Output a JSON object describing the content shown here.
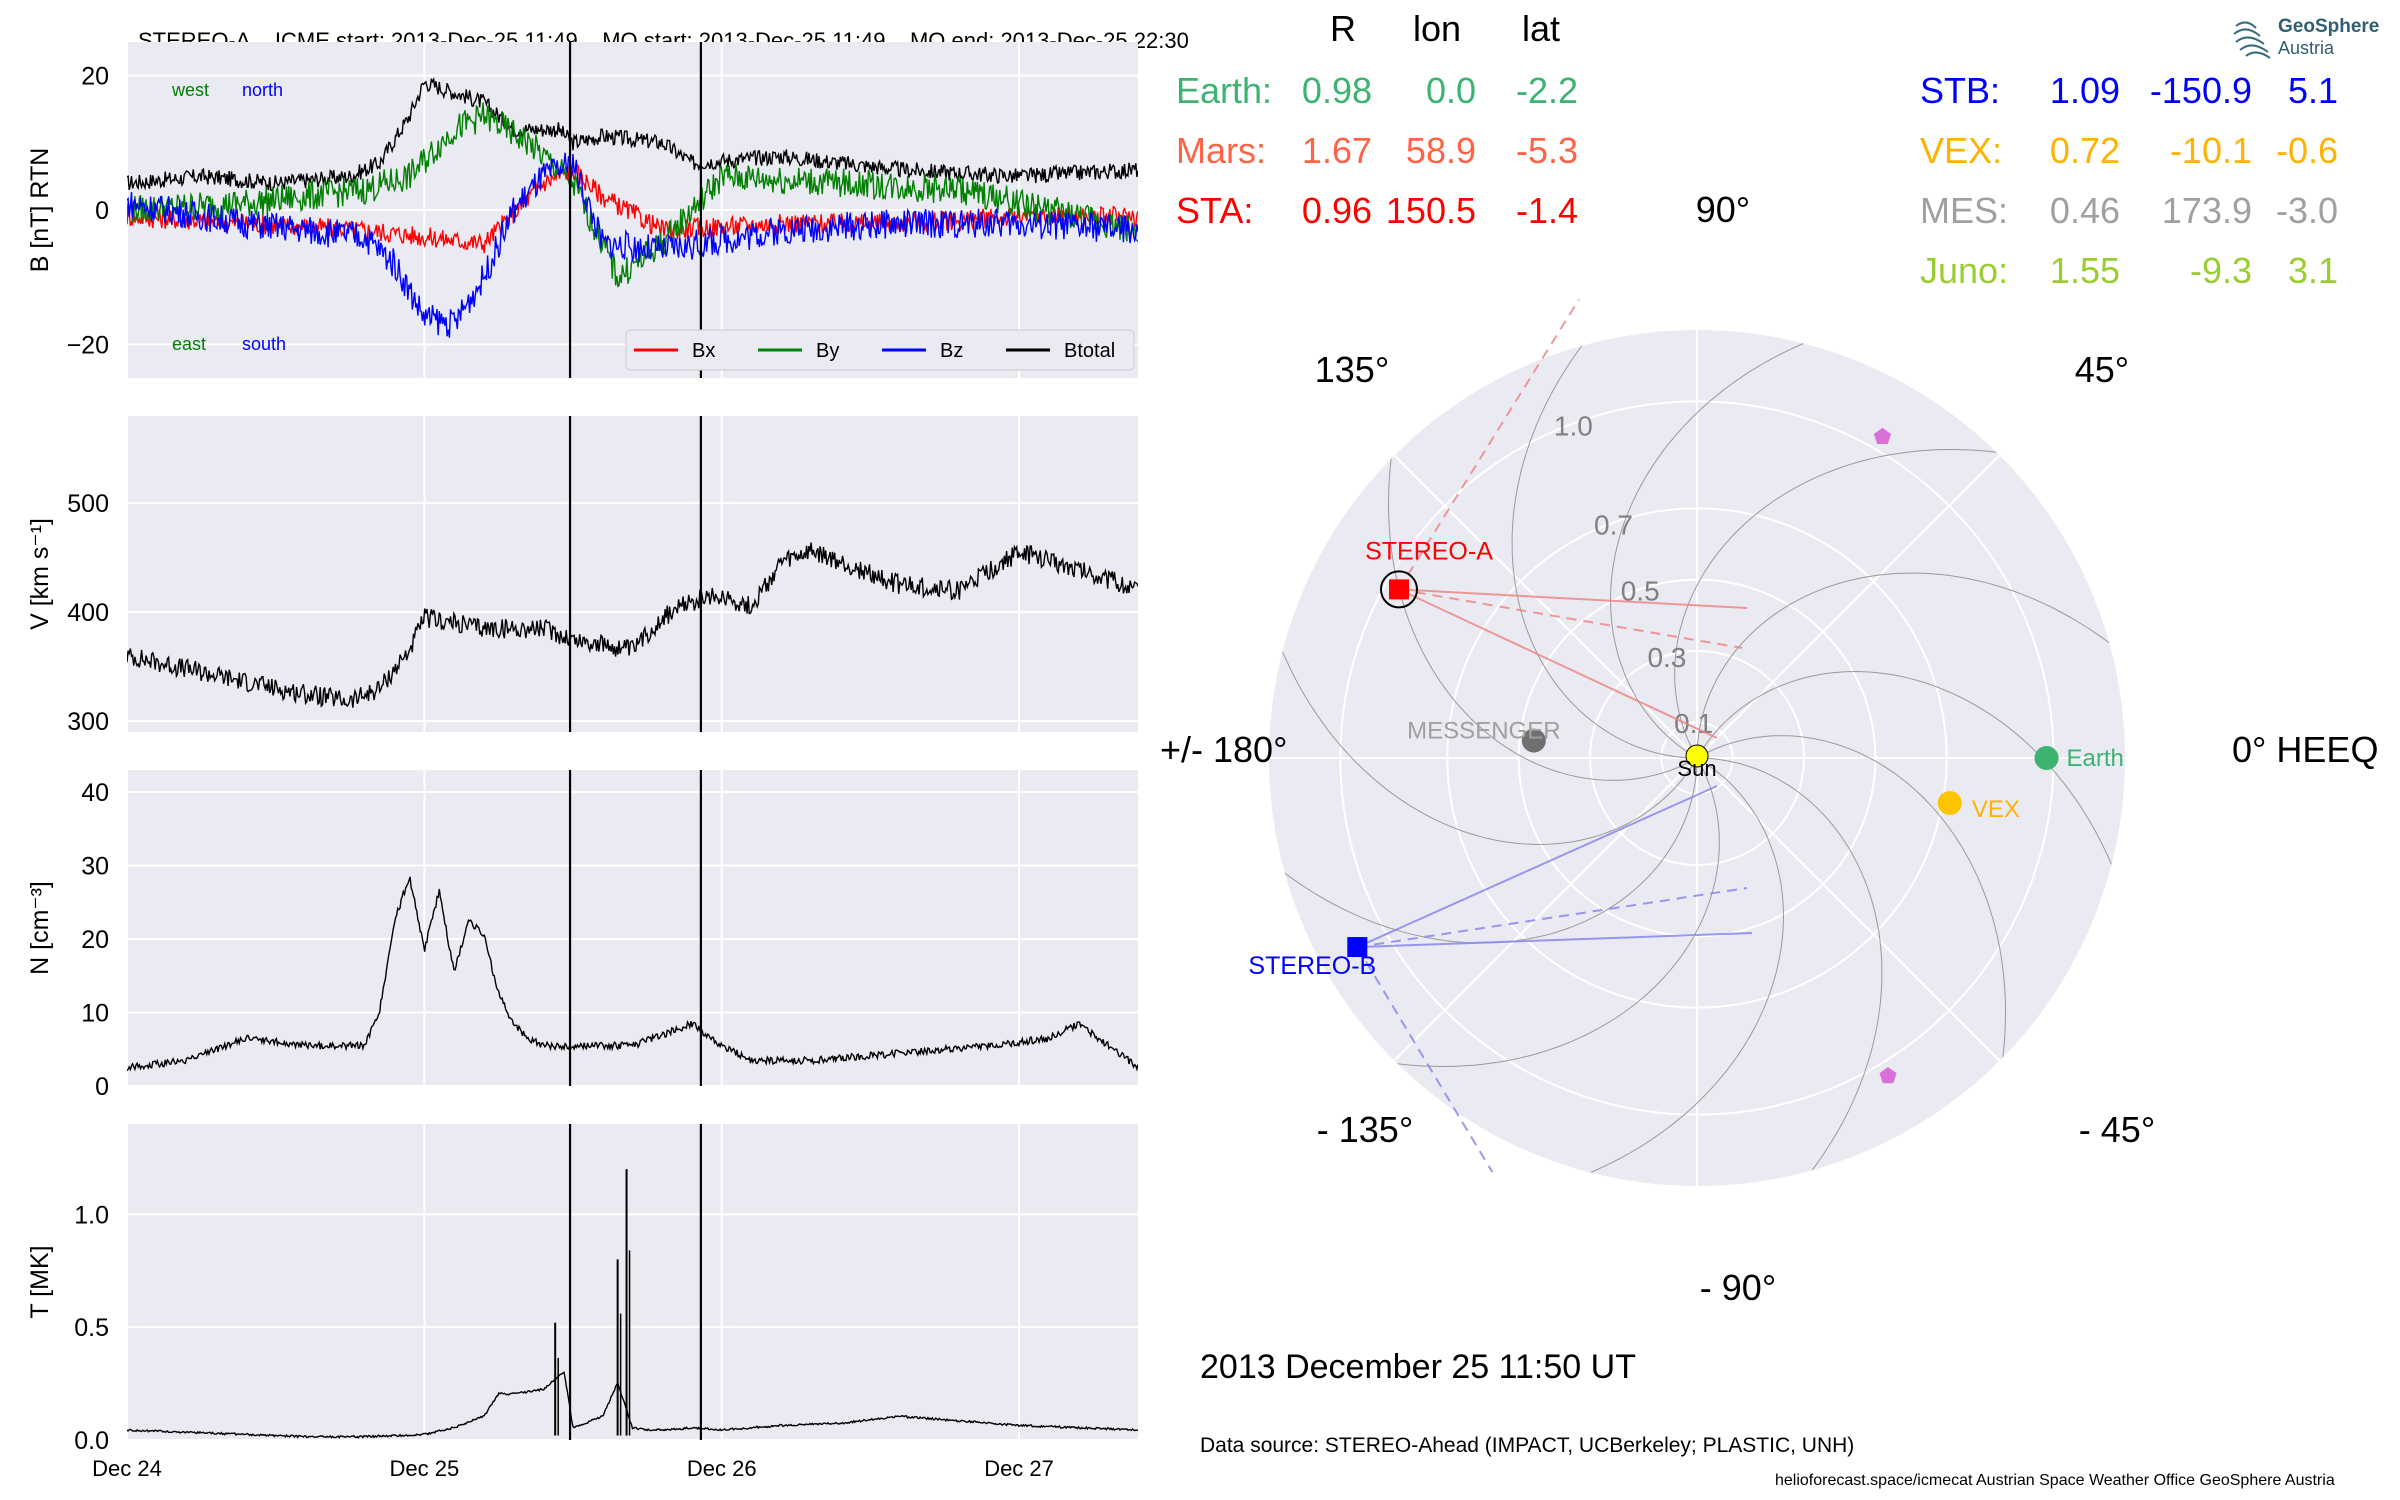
{
  "header": {
    "spacecraft": "STEREO-A",
    "icme_start": "ICME start: 2013-Dec-25 11:49",
    "mo_start": "MO start: 2013-Dec-25 11:49",
    "mo_end": "MO end: 2013-Dec-25 22:30"
  },
  "colors": {
    "Bx": "#ff0000",
    "By": "#008000",
    "Bz": "#0000ff",
    "Btotal": "#000000",
    "earth": "#3cb371",
    "mars": "#ff6347",
    "sta": "#ff0000",
    "stb": "#0000ff",
    "vex": "#ffb300",
    "mes": "#a0a0a0",
    "juno": "#9acd32"
  },
  "chart_data": [
    {
      "type": "line",
      "ylabel": "B [nT] RTN",
      "ylim": [
        -25,
        25
      ],
      "yticks": [
        "20",
        "0",
        "−20"
      ],
      "annotations": {
        "west": "west",
        "north": "north",
        "east": "east",
        "south": "south"
      },
      "legend": [
        "Bx",
        "By",
        "Bz",
        "Btotal"
      ],
      "legend_position": "lower-right",
      "x_days_since": "Dec 24",
      "series": [
        {
          "name": "Btotal",
          "x": [
            0,
            0.25,
            0.5,
            0.75,
            0.85,
            0.95,
            1.0,
            1.2,
            1.3,
            1.45,
            1.5,
            1.6,
            1.8,
            1.9,
            2.2,
            2.6,
            3.0,
            3.4
          ],
          "values": [
            4,
            5,
            4,
            5,
            7,
            14,
            19,
            16,
            12,
            12,
            10,
            11,
            10,
            7,
            8,
            6,
            5,
            6
          ]
        },
        {
          "name": "Bx",
          "x": [
            0,
            0.4,
            0.8,
            1.0,
            1.2,
            1.4,
            1.5,
            1.6,
            1.8,
            2.2,
            2.6,
            3.0,
            3.4
          ],
          "values": [
            -1,
            -2,
            -3,
            -4,
            -5,
            4,
            6,
            2,
            -3,
            -2,
            -2,
            -1,
            -1
          ]
        },
        {
          "name": "By",
          "x": [
            0,
            0.4,
            0.8,
            0.95,
            1.1,
            1.2,
            1.35,
            1.5,
            1.6,
            1.65,
            1.8,
            2.0,
            2.4,
            2.8,
            3.4
          ],
          "values": [
            0,
            1,
            3,
            5,
            12,
            14,
            10,
            4,
            -5,
            -10,
            -5,
            5,
            4,
            3,
            -3
          ]
        },
        {
          "name": "Bz",
          "x": [
            0,
            0.4,
            0.8,
            0.9,
            1.0,
            1.1,
            1.2,
            1.3,
            1.4,
            1.5,
            1.6,
            1.8,
            2.2,
            2.6,
            3.0,
            3.4
          ],
          "values": [
            1,
            -2,
            -4,
            -8,
            -16,
            -17,
            -10,
            0,
            5,
            7,
            -5,
            -6,
            -3,
            -2,
            -2,
            -3
          ]
        }
      ]
    },
    {
      "type": "line",
      "ylabel": "V [km s⁻¹]",
      "ylim": [
        290,
        580
      ],
      "yticks": [
        "500",
        "400",
        "300"
      ],
      "series": [
        {
          "name": "V",
          "x": [
            0,
            0.25,
            0.5,
            0.75,
            0.85,
            0.95,
            1.0,
            1.2,
            1.4,
            1.5,
            1.7,
            1.8,
            1.9,
            2.0,
            2.1,
            2.2,
            2.3,
            2.4,
            2.6,
            2.8,
            3.0,
            3.2,
            3.4
          ],
          "values": [
            360,
            345,
            330,
            318,
            330,
            365,
            395,
            385,
            385,
            375,
            365,
            395,
            410,
            415,
            405,
            445,
            455,
            445,
            425,
            420,
            455,
            440,
            420
          ]
        }
      ]
    },
    {
      "type": "line",
      "ylabel": "N [cm⁻³]",
      "ylim": [
        0,
        43
      ],
      "yticks": [
        "40",
        "30",
        "20",
        "10",
        "0"
      ],
      "series": [
        {
          "name": "N",
          "x": [
            0,
            0.2,
            0.4,
            0.6,
            0.8,
            0.85,
            0.9,
            0.95,
            1.0,
            1.05,
            1.1,
            1.15,
            1.2,
            1.25,
            1.3,
            1.35,
            1.4,
            1.5,
            1.7,
            1.9,
            2.0,
            2.1,
            2.3,
            2.6,
            2.9,
            3.1,
            3.2,
            3.4
          ],
          "values": [
            2,
            3,
            6,
            5,
            5,
            10,
            22,
            28,
            18,
            26,
            15,
            22,
            20,
            12,
            8,
            6,
            5,
            5,
            5,
            8,
            5,
            3,
            3,
            4,
            5,
            6,
            8,
            2
          ]
        }
      ]
    },
    {
      "type": "line",
      "ylabel": "T [MK]",
      "xlabel": "",
      "ylim": [
        0,
        1.4
      ],
      "yticks": [
        "1.0",
        "0.5",
        "0.0"
      ],
      "xticks": [
        "Dec 24",
        "Dec 25",
        "Dec 26",
        "Dec 27"
      ],
      "xlim": [
        0,
        3.4
      ],
      "vlines": [
        1.49,
        1.93
      ],
      "series": [
        {
          "name": "T",
          "x": [
            0,
            0.2,
            0.4,
            0.6,
            0.8,
            1.0,
            1.1,
            1.2,
            1.25,
            1.3,
            1.4,
            1.47,
            1.5,
            1.6,
            1.65,
            1.7,
            1.75,
            1.8,
            1.9,
            2.0,
            2.2,
            2.4,
            2.6,
            2.8,
            3.0,
            3.2,
            3.4
          ],
          "values": [
            0.04,
            0.03,
            0.02,
            0.01,
            0.01,
            0.02,
            0.05,
            0.1,
            0.2,
            0.2,
            0.22,
            0.3,
            0.05,
            0.1,
            0.25,
            0.05,
            0.04,
            0.04,
            0.05,
            0.04,
            0.06,
            0.07,
            0.1,
            0.08,
            0.06,
            0.05,
            0.04
          ]
        },
        {
          "name": "T-spikes",
          "x": [
            1.44,
            1.65,
            1.68
          ],
          "values": [
            0.52,
            0.8,
            1.2
          ]
        }
      ]
    },
    {
      "type": "scatter",
      "subtype": "polar",
      "angle_labels": {
        "a90": "90°",
        "a45": "45°",
        "a0": "0° HEEQ",
        "am45": "- 45°",
        "am90": "- 90°",
        "am135": "- 135°",
        "a180": "+/- 180°",
        "a135": "135°"
      },
      "r_labels": [
        "0.1",
        "0.3",
        "0.5",
        "0.7",
        "1.0"
      ],
      "r_ticks": [
        0.1,
        0.3,
        0.5,
        0.7,
        1.0
      ],
      "rmax": 1.2,
      "bodies": [
        {
          "name": "Earth",
          "r": 0.98,
          "lon": 0.0,
          "color": "#3cb371",
          "marker": "circle"
        },
        {
          "name": "VEX",
          "r": 0.72,
          "lon": -10.1,
          "color": "#ffc400",
          "marker": "circle"
        },
        {
          "name": "MESSENGER",
          "r": 0.46,
          "lon": 173.9,
          "color": "#707070",
          "marker": "circle"
        },
        {
          "name": "STEREO-A",
          "r": 0.96,
          "lon": 150.5,
          "color": "#ff0000",
          "marker": "square"
        },
        {
          "name": "STEREO-B",
          "r": 1.09,
          "lon": -150.9,
          "color": "#0000ff",
          "marker": "square"
        },
        {
          "name": "Juno-a",
          "r": 1.04,
          "lon": 60,
          "color": "#da70d6",
          "marker": "pentagon"
        },
        {
          "name": "Juno-b",
          "r": 1.04,
          "lon": -59,
          "color": "#da70d6",
          "marker": "pentagon"
        }
      ],
      "sun_label": "Sun"
    }
  ],
  "table": {
    "headers": [
      "R",
      "lon",
      "lat"
    ],
    "left": [
      {
        "name": "Earth:",
        "R": "0.98",
        "lon": "0.0",
        "lat": "-2.2",
        "color": "#3cb371"
      },
      {
        "name": "Mars:",
        "R": "1.67",
        "lon": "58.9",
        "lat": "-5.3",
        "color": "#ff6347"
      },
      {
        "name": "STA:",
        "R": "0.96",
        "lon": "150.5",
        "lat": "-1.4",
        "color": "#ff0000"
      }
    ],
    "right": [
      {
        "name": "STB:",
        "R": "1.09",
        "lon": "-150.9",
        "lat": "5.1",
        "color": "#0000ff"
      },
      {
        "name": "VEX:",
        "R": "0.72",
        "lon": "-10.1",
        "lat": "-0.6",
        "color": "#ffb300"
      },
      {
        "name": "MES:",
        "R": "0.46",
        "lon": "173.9",
        "lat": "-3.0",
        "color": "#a0a0a0"
      },
      {
        "name": "Juno:",
        "R": "1.55",
        "lon": "-9.3",
        "lat": "3.1",
        "color": "#9acd32"
      }
    ]
  },
  "logo": {
    "line1": "GeoSphere",
    "line2": "Austria"
  },
  "date_text": "2013 December 25  11:50 UT",
  "source_text": "Data source: STEREO-Ahead (IMPACT, UCBerkeley; PLASTIC, UNH)",
  "footer_text": "helioforecast.space/icmecat   Austrian Space Weather Office   GeoSphere Austria"
}
